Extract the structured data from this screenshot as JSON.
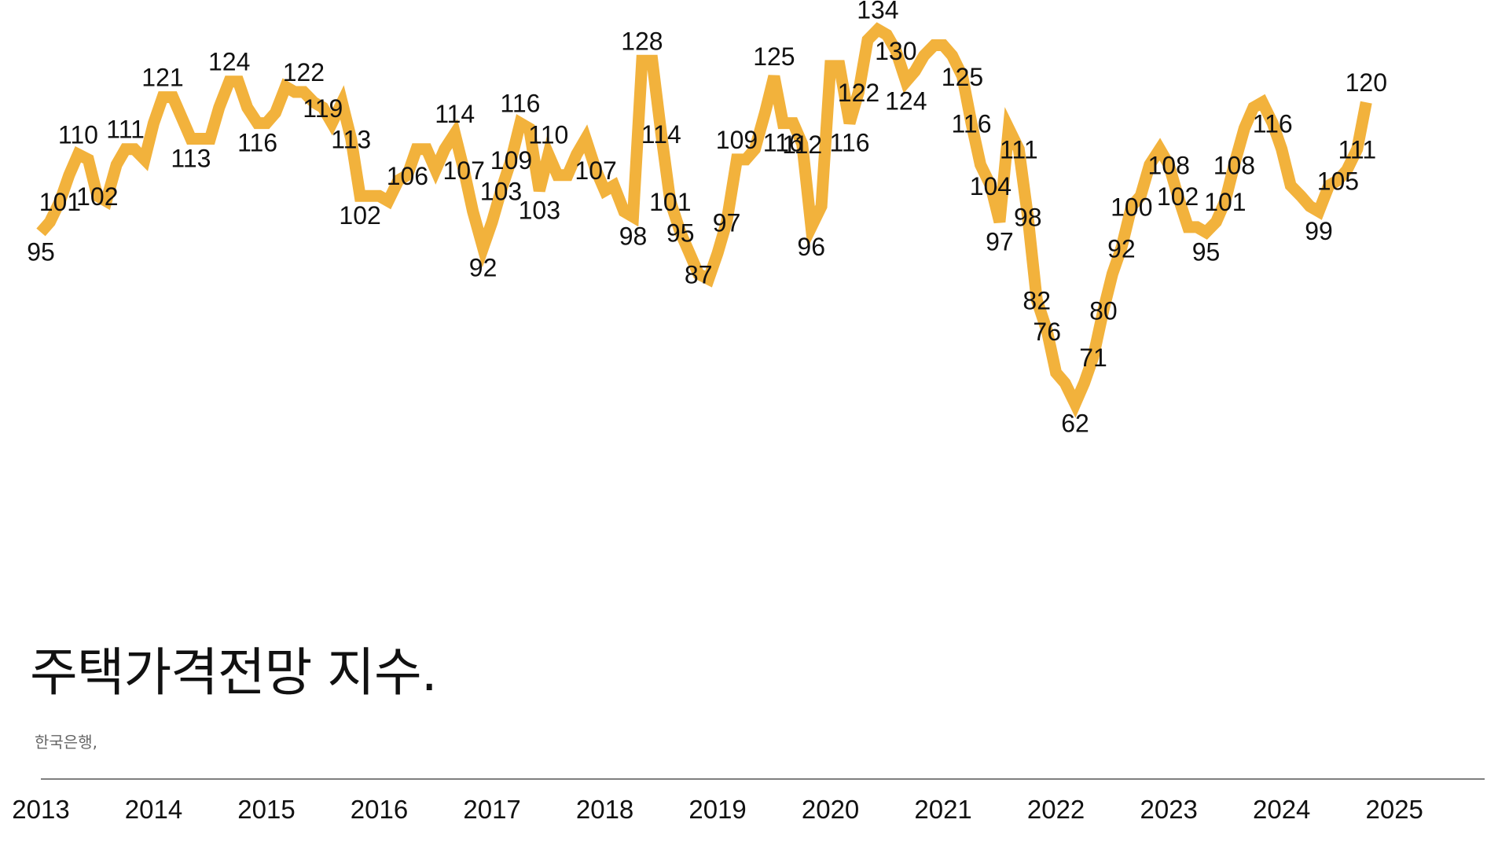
{
  "title": "주택가격전망 지수.",
  "source": "한국은행,",
  "colors": {
    "line": "#F2B23C",
    "axis": "#555555",
    "text": "#111111"
  },
  "chart_data": {
    "type": "line",
    "title": "주택가격전망 지수.",
    "xlabel": "",
    "ylabel": "",
    "ylim": [
      55,
      135
    ],
    "grid": false,
    "x_range": [
      2013.0,
      2025.8
    ],
    "x_ticks": [
      "2013",
      "2014",
      "2015",
      "2016",
      "2017",
      "2018",
      "2019",
      "2020",
      "2021",
      "2022",
      "2023",
      "2024",
      "2025"
    ],
    "series": [
      {
        "points": [
          [
            2013.0,
            95,
            true
          ],
          [
            2013.08,
            97,
            false
          ],
          [
            2013.17,
            101,
            true
          ],
          [
            2013.25,
            106,
            false
          ],
          [
            2013.33,
            110,
            true
          ],
          [
            2013.42,
            109,
            false
          ],
          [
            2013.5,
            102,
            true
          ],
          [
            2013.58,
            101,
            false
          ],
          [
            2013.67,
            108,
            false
          ],
          [
            2013.75,
            111,
            true
          ],
          [
            2013.83,
            111,
            false
          ],
          [
            2013.92,
            109,
            false
          ],
          [
            2014.0,
            116,
            false
          ],
          [
            2014.08,
            121,
            true
          ],
          [
            2014.17,
            121,
            false
          ],
          [
            2014.25,
            117,
            false
          ],
          [
            2014.33,
            113,
            true
          ],
          [
            2014.42,
            113,
            false
          ],
          [
            2014.5,
            113,
            false
          ],
          [
            2014.58,
            119,
            false
          ],
          [
            2014.67,
            124,
            true
          ],
          [
            2014.75,
            124,
            false
          ],
          [
            2014.83,
            119,
            false
          ],
          [
            2014.92,
            116,
            true
          ],
          [
            2015.0,
            116,
            false
          ],
          [
            2015.08,
            118,
            false
          ],
          [
            2015.17,
            123,
            false
          ],
          [
            2015.25,
            122,
            false
          ],
          [
            2015.33,
            122,
            true
          ],
          [
            2015.42,
            120,
            false
          ],
          [
            2015.5,
            119,
            true
          ],
          [
            2015.58,
            116,
            false
          ],
          [
            2015.67,
            120,
            false
          ],
          [
            2015.75,
            113,
            true
          ],
          [
            2015.83,
            102,
            true
          ],
          [
            2015.92,
            102,
            false
          ],
          [
            2016.0,
            102,
            false
          ],
          [
            2016.08,
            101,
            false
          ],
          [
            2016.17,
            105,
            false
          ],
          [
            2016.25,
            106,
            true
          ],
          [
            2016.33,
            111,
            false
          ],
          [
            2016.42,
            111,
            false
          ],
          [
            2016.5,
            107,
            false
          ],
          [
            2016.58,
            111,
            false
          ],
          [
            2016.67,
            114,
            true
          ],
          [
            2016.75,
            107,
            true
          ],
          [
            2016.83,
            99,
            false
          ],
          [
            2016.92,
            92,
            true
          ],
          [
            2017.0,
            97,
            false
          ],
          [
            2017.08,
            103,
            true
          ],
          [
            2017.17,
            109,
            true
          ],
          [
            2017.25,
            116,
            true
          ],
          [
            2017.33,
            115,
            false
          ],
          [
            2017.42,
            103,
            true
          ],
          [
            2017.5,
            110,
            true
          ],
          [
            2017.58,
            106,
            false
          ],
          [
            2017.67,
            106,
            false
          ],
          [
            2017.75,
            110,
            false
          ],
          [
            2017.83,
            113,
            false
          ],
          [
            2017.92,
            107,
            true
          ],
          [
            2018.0,
            103,
            false
          ],
          [
            2018.08,
            104,
            false
          ],
          [
            2018.17,
            99,
            false
          ],
          [
            2018.25,
            98,
            true
          ],
          [
            2018.33,
            128,
            true
          ],
          [
            2018.42,
            128,
            false
          ],
          [
            2018.5,
            114,
            true
          ],
          [
            2018.58,
            101,
            true
          ],
          [
            2018.67,
            95,
            true
          ],
          [
            2018.75,
            91,
            false
          ],
          [
            2018.83,
            87,
            true
          ],
          [
            2018.92,
            86,
            false
          ],
          [
            2019.0,
            91,
            false
          ],
          [
            2019.08,
            97,
            true
          ],
          [
            2019.17,
            109,
            true
          ],
          [
            2019.25,
            109,
            false
          ],
          [
            2019.33,
            111,
            false
          ],
          [
            2019.42,
            118,
            false
          ],
          [
            2019.5,
            125,
            true
          ],
          [
            2019.58,
            116,
            true
          ],
          [
            2019.67,
            116,
            false
          ],
          [
            2019.75,
            112,
            true
          ],
          [
            2019.83,
            96,
            true
          ],
          [
            2019.92,
            100,
            false
          ],
          [
            2020.0,
            127,
            false
          ],
          [
            2020.08,
            127,
            false
          ],
          [
            2020.17,
            116,
            true
          ],
          [
            2020.25,
            122,
            true
          ],
          [
            2020.33,
            132,
            false
          ],
          [
            2020.42,
            134,
            true
          ],
          [
            2020.5,
            133,
            false
          ],
          [
            2020.58,
            130,
            true
          ],
          [
            2020.67,
            124,
            true
          ],
          [
            2020.75,
            126,
            false
          ],
          [
            2020.83,
            129,
            false
          ],
          [
            2020.92,
            131,
            false
          ],
          [
            2021.0,
            131,
            false
          ],
          [
            2021.08,
            129,
            false
          ],
          [
            2021.17,
            125,
            true
          ],
          [
            2021.25,
            116,
            true
          ],
          [
            2021.33,
            108,
            false
          ],
          [
            2021.42,
            104,
            true
          ],
          [
            2021.5,
            97,
            true
          ],
          [
            2021.58,
            115,
            false
          ],
          [
            2021.67,
            111,
            true
          ],
          [
            2021.75,
            98,
            true
          ],
          [
            2021.83,
            82,
            true
          ],
          [
            2021.92,
            76,
            true
          ],
          [
            2022.0,
            68,
            false
          ],
          [
            2022.08,
            66,
            false
          ],
          [
            2022.17,
            62,
            true
          ],
          [
            2022.25,
            66,
            false
          ],
          [
            2022.33,
            71,
            true
          ],
          [
            2022.42,
            80,
            true
          ],
          [
            2022.5,
            87,
            false
          ],
          [
            2022.58,
            92,
            true
          ],
          [
            2022.67,
            100,
            true
          ],
          [
            2022.75,
            102,
            false
          ],
          [
            2022.83,
            108,
            false
          ],
          [
            2022.92,
            111,
            false
          ],
          [
            2023.0,
            108,
            true
          ],
          [
            2023.08,
            102,
            true
          ],
          [
            2023.17,
            96,
            false
          ],
          [
            2023.25,
            96,
            false
          ],
          [
            2023.33,
            95,
            true
          ],
          [
            2023.42,
            97,
            false
          ],
          [
            2023.5,
            101,
            true
          ],
          [
            2023.58,
            108,
            true
          ],
          [
            2023.67,
            115,
            false
          ],
          [
            2023.75,
            119,
            false
          ],
          [
            2023.83,
            120,
            false
          ],
          [
            2023.92,
            116,
            true
          ],
          [
            2024.0,
            111,
            false
          ],
          [
            2024.08,
            104,
            false
          ],
          [
            2024.17,
            102,
            false
          ],
          [
            2024.25,
            100,
            false
          ],
          [
            2024.33,
            99,
            true
          ],
          [
            2024.42,
            104,
            false
          ],
          [
            2024.5,
            105,
            true
          ],
          [
            2024.58,
            107,
            false
          ],
          [
            2024.67,
            111,
            true
          ],
          [
            2024.75,
            120,
            true
          ]
        ]
      }
    ]
  }
}
